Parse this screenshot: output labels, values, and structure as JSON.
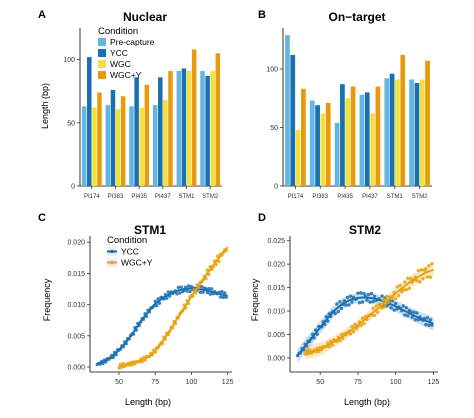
{
  "figure": {
    "panel_labels": [
      "A",
      "B",
      "C",
      "D"
    ]
  },
  "chart_data": [
    {
      "panel": "A",
      "type": "bar",
      "title": "Nuclear",
      "xlabel": "",
      "ylabel": "Length (bp)",
      "ylim": [
        0,
        125
      ],
      "yticks": [
        0,
        50,
        100
      ],
      "categories": [
        "PI174",
        "PI383",
        "PI435",
        "PI437",
        "STM1",
        "STM2"
      ],
      "legend": {
        "title": "Condition",
        "position": "top-left"
      },
      "series": [
        {
          "name": "Pre-capture",
          "color": "#62b6e3",
          "values": [
            63,
            64,
            63,
            64,
            91,
            91
          ]
        },
        {
          "name": "YCC",
          "color": "#1a6fb0",
          "values": [
            102,
            76,
            86,
            86,
            93,
            87
          ]
        },
        {
          "name": "WGC",
          "color": "#f2e03c",
          "values": [
            62,
            61,
            62,
            68,
            91,
            91
          ]
        },
        {
          "name": "WGC+Y",
          "color": "#e89a0c",
          "values": [
            74,
            71,
            80,
            91,
            108,
            105
          ]
        }
      ]
    },
    {
      "panel": "B",
      "type": "bar",
      "title": "On−target",
      "xlabel": "",
      "ylabel": "",
      "ylim": [
        0,
        135
      ],
      "yticks": [
        0,
        50,
        100
      ],
      "categories": [
        "PI174",
        "PI383",
        "PI435",
        "PI437",
        "STM1",
        "STM2"
      ],
      "series": [
        {
          "name": "Pre-capture",
          "color": "#62b6e3",
          "values": [
            129,
            73,
            54,
            78,
            92,
            91
          ]
        },
        {
          "name": "YCC",
          "color": "#1a6fb0",
          "values": [
            112,
            69,
            87,
            80,
            96,
            88
          ]
        },
        {
          "name": "WGC",
          "color": "#f2e03c",
          "values": [
            48,
            62,
            75,
            62,
            91,
            91
          ]
        },
        {
          "name": "WGC+Y",
          "color": "#e89a0c",
          "values": [
            83,
            71,
            85,
            85,
            112,
            107
          ]
        }
      ]
    },
    {
      "panel": "C",
      "type": "scatter",
      "title": "STM1",
      "xlabel": "Length (bp)",
      "ylabel": "Frequency",
      "xlim": [
        30,
        128
      ],
      "ylim": [
        -0.0008,
        0.021
      ],
      "xticks": [
        50,
        75,
        100,
        125
      ],
      "yticks": [
        0.0,
        0.005,
        0.01,
        0.015,
        0.02
      ],
      "ytick_labels": [
        "0.000",
        "0.005",
        "0.010",
        "0.015",
        "0.020"
      ],
      "legend": {
        "title": "Condition",
        "position": "top-left"
      },
      "series": [
        {
          "name": "YCC",
          "color": "#1a6fb0",
          "x": [
            35,
            40,
            45,
            50,
            55,
            60,
            65,
            70,
            75,
            80,
            85,
            90,
            95,
            100,
            105,
            110,
            115,
            120,
            125
          ],
          "y": [
            0.0004,
            0.0009,
            0.0016,
            0.0027,
            0.004,
            0.0056,
            0.0073,
            0.0088,
            0.0101,
            0.011,
            0.0117,
            0.0122,
            0.0125,
            0.0126,
            0.0125,
            0.0123,
            0.012,
            0.0117,
            0.0114
          ]
        },
        {
          "name": "WGC+Y",
          "color": "#e6a10d",
          "x": [
            50,
            55,
            60,
            65,
            70,
            75,
            80,
            85,
            90,
            95,
            100,
            105,
            110,
            115,
            120,
            125
          ],
          "y": [
            0.0001,
            0.0004,
            0.0006,
            0.001,
            0.0016,
            0.0026,
            0.0041,
            0.0058,
            0.0077,
            0.0095,
            0.0113,
            0.013,
            0.0147,
            0.0163,
            0.0178,
            0.0192
          ]
        }
      ]
    },
    {
      "panel": "D",
      "type": "scatter",
      "title": "STM2",
      "xlabel": "Length (bp)",
      "ylabel": "Frequency",
      "xlim": [
        30,
        128
      ],
      "ylim": [
        -0.003,
        0.026
      ],
      "xticks": [
        50,
        75,
        100,
        125
      ],
      "yticks": [
        0.0,
        0.005,
        0.01,
        0.015,
        0.02,
        0.025
      ],
      "ytick_labels": [
        "0.000",
        "0.005",
        "0.010",
        "0.015",
        "0.020",
        "0.025"
      ],
      "series": [
        {
          "name": "YCC",
          "color": "#1a6fb0",
          "x": [
            35,
            40,
            45,
            50,
            55,
            60,
            65,
            70,
            75,
            80,
            85,
            90,
            95,
            100,
            105,
            110,
            115,
            120,
            125
          ],
          "y": [
            0.0005,
            0.0025,
            0.0045,
            0.0065,
            0.0085,
            0.0103,
            0.0116,
            0.0124,
            0.0128,
            0.0129,
            0.0127,
            0.0123,
            0.0117,
            0.011,
            0.0102,
            0.0094,
            0.0086,
            0.0079,
            0.0073
          ]
        },
        {
          "name": "WGC+Y",
          "color": "#e6a10d",
          "x": [
            40,
            45,
            50,
            55,
            60,
            65,
            70,
            75,
            80,
            85,
            90,
            95,
            100,
            105,
            110,
            115,
            120,
            125
          ],
          "y": [
            0.0012,
            0.0014,
            0.0019,
            0.0027,
            0.0036,
            0.0046,
            0.0058,
            0.007,
            0.0083,
            0.0097,
            0.011,
            0.0124,
            0.0138,
            0.0151,
            0.0163,
            0.0173,
            0.0182,
            0.0188
          ]
        }
      ]
    }
  ]
}
